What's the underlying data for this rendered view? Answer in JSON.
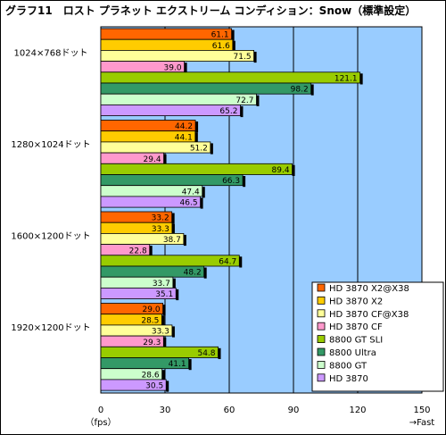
{
  "chart_data": {
    "type": "bar",
    "orientation": "horizontal",
    "title": "グラフ11　ロスト プラネット エクストリーム コンディション：Snow（標準設定）",
    "categories": [
      "1024×768ドット",
      "1280×1024ドット",
      "1600×1200ドット",
      "1920×1200ドット"
    ],
    "series": [
      {
        "name": "HD 3870 X2@X38",
        "color": "#ff6600",
        "values": [
          61.1,
          44.2,
          33.2,
          29.0
        ]
      },
      {
        "name": "HD 3870 X2",
        "color": "#ffcc00",
        "values": [
          61.6,
          44.1,
          33.3,
          28.5
        ]
      },
      {
        "name": "HD 3870 CF@X38",
        "color": "#ffff99",
        "values": [
          71.5,
          51.2,
          38.7,
          33.3
        ]
      },
      {
        "name": "HD 3870 CF",
        "color": "#ff99cc",
        "values": [
          39.0,
          29.4,
          22.8,
          29.3
        ]
      },
      {
        "name": "8800 GT SLI",
        "color": "#99cc00",
        "values": [
          121.1,
          89.4,
          64.7,
          54.8
        ]
      },
      {
        "name": "8800 Ultra",
        "color": "#339966",
        "values": [
          98.2,
          66.3,
          48.2,
          41.1
        ]
      },
      {
        "name": "8800 GT",
        "color": "#ccffcc",
        "values": [
          72.7,
          47.4,
          33.7,
          28.6
        ]
      },
      {
        "name": "HD 3870",
        "color": "#cc99ff",
        "values": [
          65.2,
          46.5,
          35.1,
          30.5
        ]
      }
    ],
    "xlim": [
      0,
      150
    ],
    "xticks": [
      "0",
      "30",
      "60",
      "90",
      "120",
      "150"
    ],
    "xlabel_left": "（fps）",
    "xlabel_right": "→Fast",
    "grid": true,
    "plot_background": "#99ccff",
    "legend_position": "bottom-right"
  }
}
